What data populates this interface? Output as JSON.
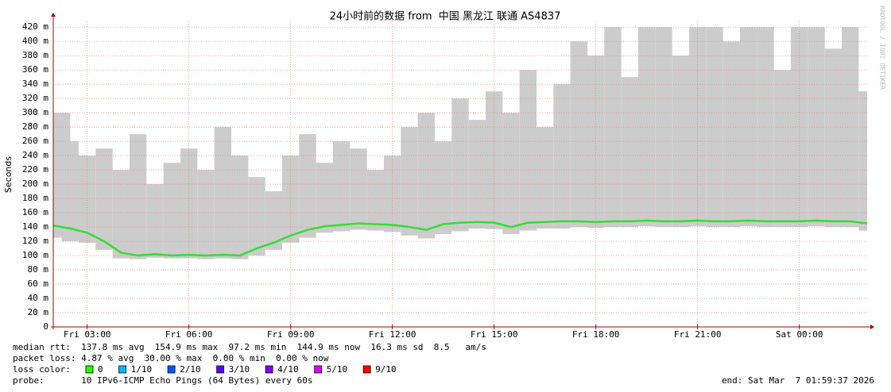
{
  "chart_data": {
    "type": "smokeping",
    "title": "24小时前的数据 from  中国 黑龙江 联通 AS4837",
    "y_label": "Seconds",
    "watermark": "RRDTOOL / TOBI OETIKER",
    "xlim": [
      2,
      26
    ],
    "ylim": [
      0,
      0.428
    ],
    "grid": true,
    "xticks": [
      {
        "value": 3,
        "label": "Fri 03:00"
      },
      {
        "value": 6,
        "label": "Fri 06:00"
      },
      {
        "value": 9,
        "label": "Fri 09:00"
      },
      {
        "value": 12,
        "label": "Fri 12:00"
      },
      {
        "value": 15,
        "label": "Fri 15:00"
      },
      {
        "value": 18,
        "label": "Fri 18:00"
      },
      {
        "value": 21,
        "label": "Fri 21:00"
      },
      {
        "value": 24,
        "label": "Sat 00:00"
      }
    ],
    "yticks": [
      0,
      {
        "value": 0.02,
        "label": "20 m"
      },
      {
        "value": 0.04,
        "label": "40 m"
      },
      {
        "value": 0.06,
        "label": "60 m"
      },
      {
        "value": 0.08,
        "label": "80 m"
      },
      {
        "value": 0.1,
        "label": "100 m"
      },
      {
        "value": 0.12,
        "label": "120 m"
      },
      {
        "value": 0.14,
        "label": "140 m"
      },
      {
        "value": 0.16,
        "label": "160 m"
      },
      {
        "value": 0.18,
        "label": "180 m"
      },
      {
        "value": 0.2,
        "label": "200 m"
      },
      {
        "value": 0.22,
        "label": "220 m"
      },
      {
        "value": 0.24,
        "label": "240 m"
      },
      {
        "value": 0.26,
        "label": "260 m"
      },
      {
        "value": 0.28,
        "label": "280 m"
      },
      {
        "value": 0.3,
        "label": "300 m"
      },
      {
        "value": 0.32,
        "label": "320 m"
      },
      {
        "value": 0.34,
        "label": "340 m"
      },
      {
        "value": 0.36,
        "label": "360 m"
      },
      {
        "value": 0.38,
        "label": "380 m"
      },
      {
        "value": 0.4,
        "label": "400 m"
      },
      {
        "value": 0.42,
        "label": "420 m"
      }
    ],
    "x": [
      2,
      2.5,
      3,
      3.5,
      4,
      4.5,
      5,
      5.5,
      6,
      6.5,
      7,
      7.5,
      8,
      8.5,
      9,
      9.5,
      10,
      10.5,
      11,
      11.5,
      12,
      12.5,
      13,
      13.5,
      14,
      14.5,
      15,
      15.5,
      16,
      16.5,
      17,
      17.5,
      18,
      18.5,
      19,
      19.5,
      20,
      20.5,
      21,
      21.5,
      22,
      22.5,
      23,
      23.5,
      24,
      24.5,
      25,
      25.5,
      26
    ],
    "median": [
      0.142,
      0.138,
      0.132,
      0.12,
      0.104,
      0.1,
      0.102,
      0.1,
      0.101,
      0.1,
      0.101,
      0.1,
      0.11,
      0.118,
      0.128,
      0.136,
      0.141,
      0.143,
      0.145,
      0.144,
      0.143,
      0.14,
      0.136,
      0.144,
      0.146,
      0.147,
      0.146,
      0.14,
      0.146,
      0.147,
      0.148,
      0.148,
      0.147,
      0.148,
      0.148,
      0.149,
      0.148,
      0.148,
      0.149,
      0.148,
      0.148,
      0.149,
      0.148,
      0.148,
      0.148,
      0.149,
      0.148,
      0.148,
      0.145
    ],
    "max": [
      0.3,
      0.26,
      0.24,
      0.25,
      0.22,
      0.27,
      0.2,
      0.23,
      0.25,
      0.22,
      0.28,
      0.24,
      0.21,
      0.19,
      0.24,
      0.27,
      0.23,
      0.26,
      0.25,
      0.22,
      0.24,
      0.28,
      0.3,
      0.26,
      0.32,
      0.29,
      0.33,
      0.3,
      0.36,
      0.28,
      0.34,
      0.4,
      0.38,
      0.42,
      0.35,
      0.42,
      0.42,
      0.38,
      0.42,
      0.42,
      0.4,
      0.42,
      0.42,
      0.36,
      0.42,
      0.42,
      0.39,
      0.42,
      0.33
    ],
    "min": [
      0.125,
      0.12,
      0.118,
      0.108,
      0.096,
      0.095,
      0.097,
      0.096,
      0.096,
      0.095,
      0.096,
      0.095,
      0.1,
      0.108,
      0.118,
      0.125,
      0.132,
      0.134,
      0.136,
      0.135,
      0.133,
      0.128,
      0.124,
      0.13,
      0.134,
      0.138,
      0.137,
      0.13,
      0.135,
      0.138,
      0.138,
      0.14,
      0.139,
      0.14,
      0.14,
      0.141,
      0.14,
      0.14,
      0.141,
      0.14,
      0.14,
      0.141,
      0.14,
      0.14,
      0.14,
      0.141,
      0.14,
      0.14,
      0.135
    ],
    "median_color": "#33dd33",
    "smoke_color": "#cccccc",
    "stats": [
      "median rtt:  137.8 ms avg  154.9 ms max  97.2 ms min  144.9 ms now  16.3 ms sd  8.5   am/s",
      "packet loss: 4.87 % avg  30.00 % max  0.00 % min  0.00 % now"
    ],
    "loss_title": "loss color:",
    "loss_colors": [
      {
        "label": "0",
        "color": "#26ff00"
      },
      {
        "label": "1/10",
        "color": "#00b8ff"
      },
      {
        "label": "2/10",
        "color": "#0059ff"
      },
      {
        "label": "3/10",
        "color": "#5e00ff"
      },
      {
        "label": "4/10",
        "color": "#7e00ff"
      },
      {
        "label": "5/10",
        "color": "#dd00ff"
      },
      {
        "label": "9/10",
        "color": "#ff0000"
      }
    ],
    "probe": "probe:       10 IPv6-ICMP Echo Pings (64 Bytes) every 60s",
    "end": "end: Sat Mar  7 01:59:37 2026"
  }
}
